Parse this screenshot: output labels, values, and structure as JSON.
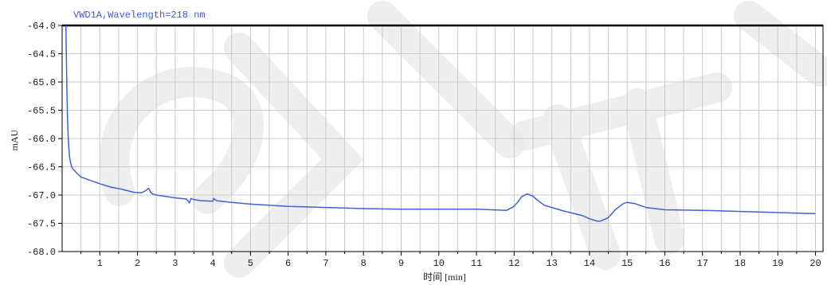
{
  "chart_data": {
    "type": "line",
    "title": "VWD1A,Wavelength=218 nm",
    "xlabel": "时间 [min]",
    "ylabel": "mAU",
    "xlim": [
      0,
      20.2
    ],
    "ylim": [
      -68.0,
      -64.0
    ],
    "x_ticks": [
      1,
      2,
      3,
      4,
      5,
      6,
      7,
      8,
      9,
      10,
      11,
      12,
      13,
      14,
      15,
      16,
      17,
      18,
      19,
      20
    ],
    "y_tick_labels": [
      "-64.0",
      "-64.5",
      "-65.0",
      "-65.5",
      "-66.0",
      "-66.5",
      "-67.0",
      "-67.5",
      "-68.0"
    ],
    "grid": true,
    "series": [
      {
        "color": "#3f62d8",
        "x": [
          0.1,
          0.12,
          0.14,
          0.17,
          0.2,
          0.25,
          0.3,
          0.4,
          0.5,
          0.7,
          1.0,
          1.3,
          1.6,
          1.9,
          2.1,
          2.2,
          2.3,
          2.35,
          2.4,
          2.5,
          2.8,
          3.0,
          3.3,
          3.38,
          3.42,
          3.5,
          3.7,
          4.0,
          4.02,
          4.1,
          4.5,
          5.0,
          6.0,
          7.0,
          8.0,
          9.0,
          10.0,
          11.0,
          11.8,
          12.0,
          12.1,
          12.2,
          12.35,
          12.5,
          12.6,
          12.8,
          13.0,
          13.3,
          13.6,
          13.8,
          14.0,
          14.2,
          14.3,
          14.5,
          14.7,
          14.9,
          15.0,
          15.2,
          15.5,
          16.0,
          17.0,
          18.0,
          19.0,
          20.0
        ],
        "y": [
          -64.0,
          -64.9,
          -65.6,
          -66.1,
          -66.35,
          -66.5,
          -66.55,
          -66.62,
          -66.68,
          -66.73,
          -66.8,
          -66.86,
          -66.9,
          -66.95,
          -66.96,
          -66.93,
          -66.88,
          -66.95,
          -66.98,
          -67.0,
          -67.03,
          -67.05,
          -67.07,
          -67.14,
          -67.06,
          -67.08,
          -67.1,
          -67.11,
          -67.06,
          -67.1,
          -67.13,
          -67.16,
          -67.2,
          -67.22,
          -67.24,
          -67.25,
          -67.25,
          -67.25,
          -67.27,
          -67.2,
          -67.12,
          -67.03,
          -66.98,
          -67.02,
          -67.08,
          -67.18,
          -67.22,
          -67.28,
          -67.33,
          -67.36,
          -67.42,
          -67.46,
          -67.46,
          -67.4,
          -67.25,
          -67.15,
          -67.13,
          -67.15,
          -67.22,
          -67.26,
          -67.27,
          -67.29,
          -67.31,
          -67.33
        ]
      }
    ]
  }
}
